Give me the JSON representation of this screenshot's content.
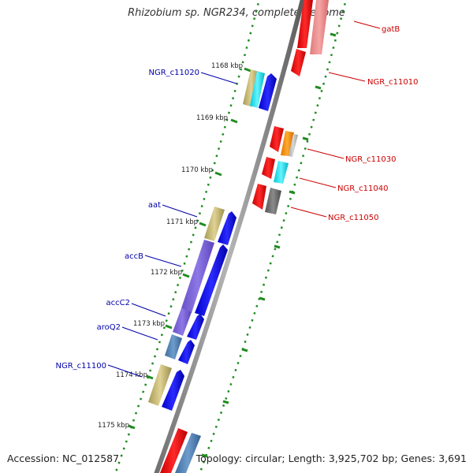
{
  "title": "Rhizobium sp. NGR234, complete genome",
  "footer": {
    "accession": "Accession: NC_012587",
    "summary": "Topology: circular; Length: 3,925,702 bp; Genes: 3,691"
  },
  "ruler": [
    {
      "label": "1168 kbp"
    },
    {
      "label": "1169 kbp"
    },
    {
      "label": "1170 kbp"
    },
    {
      "label": "1171 kbp"
    },
    {
      "label": "1172 kbp"
    },
    {
      "label": "1173 kbp"
    },
    {
      "label": "1174 kbp"
    },
    {
      "label": "1175 kbp"
    }
  ],
  "genes_right": [
    {
      "label": "gatB",
      "color": "#cc0000"
    },
    {
      "label": "NGR_c11010",
      "color": "#cc0000"
    },
    {
      "label": "NGR_c11030",
      "color": "#cc0000"
    },
    {
      "label": "NGR_c11040",
      "color": "#cc0000"
    },
    {
      "label": "NGR_c11050",
      "color": "#cc0000"
    }
  ],
  "genes_left": [
    {
      "label": "NGR_c11020",
      "color": "#0000aa"
    },
    {
      "label": "aat",
      "color": "#0000aa"
    },
    {
      "label": "accB",
      "color": "#0000aa"
    },
    {
      "label": "accC2",
      "color": "#0000aa"
    },
    {
      "label": "aroQ2",
      "color": "#0000aa"
    },
    {
      "label": "NGR_c11100",
      "color": "#0000aa"
    }
  ],
  "colors": {
    "backbone": "#808080",
    "forward_strand": "#0000ee",
    "reverse_strand": "#ee0000",
    "dotted_track": "#228b22"
  }
}
